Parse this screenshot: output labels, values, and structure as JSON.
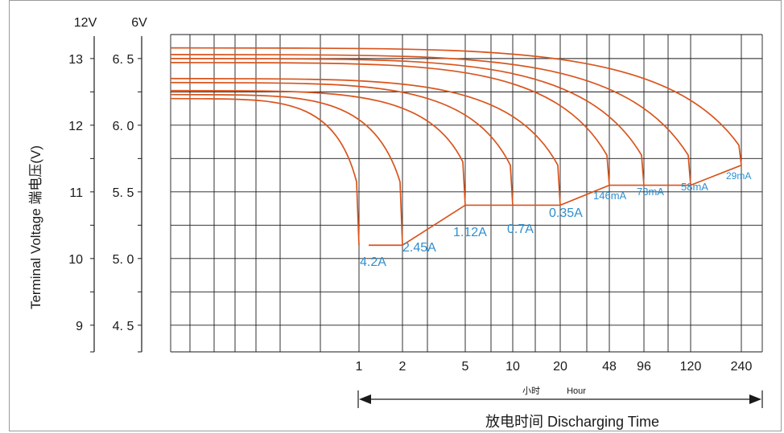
{
  "chart_data": {
    "type": "line",
    "title": "",
    "y_axis_12v": {
      "header": "12V",
      "ticks": [
        {
          "label": "13",
          "value": 13
        },
        {
          "label": "12",
          "value": 12
        },
        {
          "label": "11",
          "value": 11
        },
        {
          "label": "10",
          "value": 10
        },
        {
          "label": "9",
          "value": 9
        }
      ]
    },
    "y_axis_6v": {
      "header": "6V",
      "ticks": [
        {
          "label": "6. 5",
          "value": 6.5
        },
        {
          "label": "6. 0",
          "value": 6.0
        },
        {
          "label": "5. 5",
          "value": 5.5
        },
        {
          "label": "5. 0",
          "value": 5.0
        },
        {
          "label": "4. 5",
          "value": 4.5
        }
      ]
    },
    "ylabel": "Terminal Voltage 端电压(V)",
    "ylim_6v": [
      4.3,
      6.68
    ],
    "x_axis": {
      "ticks": [
        "1",
        "2",
        "5",
        "10",
        "20",
        "48",
        "96",
        "120",
        "240"
      ],
      "unit_cn": "小时",
      "unit_en": "Hour",
      "label": "放电时间 Discharging Time"
    },
    "series": [
      {
        "name": "4.2A",
        "x": [
          0,
          1,
          1
        ],
        "y": [
          6.2,
          6.05,
          5.1
        ]
      },
      {
        "name": "2.45A",
        "x": [
          0,
          2,
          2
        ],
        "y": [
          6.23,
          6.05,
          5.1
        ]
      },
      {
        "name": "1.12A",
        "x": [
          0,
          5,
          5
        ],
        "y": [
          6.26,
          6.05,
          5.4
        ]
      },
      {
        "name": "0.7A",
        "x": [
          0,
          10,
          10
        ],
        "y": [
          6.32,
          6.0,
          5.4
        ]
      },
      {
        "name": "0.35A",
        "x": [
          0,
          20,
          20
        ],
        "y": [
          6.35,
          6.0,
          5.4
        ]
      },
      {
        "name": "146mA",
        "x": [
          0,
          48,
          48
        ],
        "y": [
          6.47,
          6.0,
          5.55
        ]
      },
      {
        "name": "73mA",
        "x": [
          0,
          96,
          96
        ],
        "y": [
          6.5,
          6.0,
          5.55
        ]
      },
      {
        "name": "58mA",
        "x": [
          0,
          120,
          120
        ],
        "y": [
          6.53,
          6.0,
          5.55
        ]
      },
      {
        "name": "29mA",
        "x": [
          0,
          240,
          240
        ],
        "y": [
          6.58,
          6.0,
          5.7
        ]
      }
    ],
    "end_voltage_line": {
      "x": [
        "1",
        "2",
        "5",
        "20",
        "48",
        "120",
        "240"
      ],
      "y": [
        5.1,
        5.1,
        5.4,
        5.4,
        5.55,
        5.55,
        5.7
      ]
    },
    "grid": true,
    "colors": {
      "curve": "#d9541c",
      "label": "#2e8fd0",
      "grid": "#1a1a1a"
    }
  }
}
